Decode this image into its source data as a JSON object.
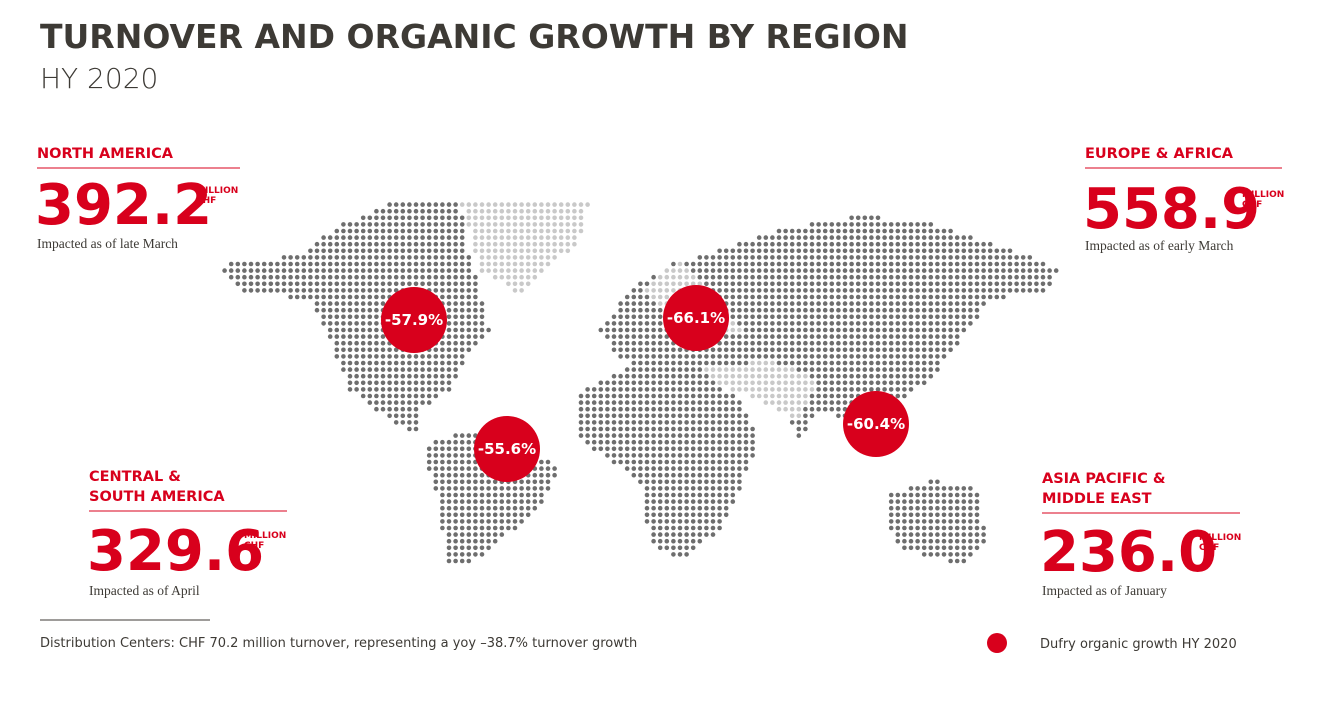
{
  "header": {
    "title": "TURNOVER AND ORGANIC GROWTH BY REGION",
    "subtitle": "HY 2020"
  },
  "regions": [
    {
      "name": [
        "NORTH AMERICA"
      ],
      "value": "392.2",
      "unit": [
        "MILLION",
        "CHF"
      ],
      "note": "Impacted as of late March",
      "growth": "-57.9%"
    },
    {
      "name": [
        "EUROPE & AFRICA"
      ],
      "value": "558.9",
      "unit": [
        "MILLION",
        "CHF"
      ],
      "note": "Impacted as of early March",
      "growth": "-66.1%"
    },
    {
      "name": [
        "CENTRAL &",
        "SOUTH AMERICA"
      ],
      "value": "329.6",
      "unit": [
        "MILLION",
        "CHF"
      ],
      "note": "Impacted as of April",
      "growth": "-55.6%"
    },
    {
      "name": [
        "ASIA PACIFIC &",
        "MIDDLE EAST"
      ],
      "value": "236.0",
      "unit": [
        "MILLION",
        "CHF"
      ],
      "note": "Impacted as of January",
      "growth": "-60.4%"
    }
  ],
  "footer": {
    "note": "Distribution Centers: CHF 70.2 million turnover, representing a yoy –38.7% turnover growth",
    "legend": "Dufry organic growth HY 2020"
  }
}
